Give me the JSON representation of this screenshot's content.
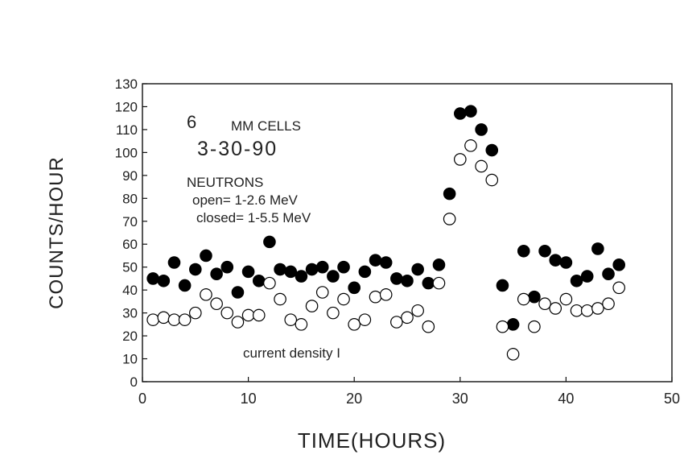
{
  "chart_data": {
    "type": "scatter",
    "title": "",
    "xlabel": "TIME(HOURS)",
    "ylabel": "COUNTS/HOUR",
    "xlim": [
      0,
      50
    ],
    "ylim": [
      0,
      130
    ],
    "x_ticks": [
      0,
      10,
      20,
      30,
      40,
      50
    ],
    "y_ticks": [
      0,
      10,
      20,
      30,
      40,
      50,
      60,
      70,
      80,
      90,
      100,
      110,
      120,
      130
    ],
    "grid": false,
    "annotations": {
      "cell_number": "6",
      "cell_type": "MM CELLS",
      "date": "3-30-90",
      "neutrons": "NEUTRONS",
      "open": "open= 1-2.6 MeV",
      "closed": "closed= 1-5.5 MeV",
      "current_density": "current density I"
    },
    "series": [
      {
        "marker": "filled-circle",
        "color": "#000000",
        "x": [
          1,
          2,
          3,
          4,
          5,
          6,
          7,
          8,
          9,
          10,
          11,
          12,
          13,
          14,
          15,
          16,
          17,
          18,
          19,
          20,
          21,
          22,
          23,
          24,
          25,
          26,
          27,
          28,
          29,
          30,
          31,
          32,
          33,
          34,
          35,
          36,
          37,
          38,
          39,
          40,
          41,
          42,
          43,
          44,
          45
        ],
        "y": [
          45,
          44,
          52,
          42,
          49,
          55,
          47,
          50,
          39,
          48,
          44,
          61,
          49,
          48,
          46,
          49,
          50,
          46,
          50,
          41,
          48,
          53,
          52,
          45,
          44,
          49,
          43,
          51,
          82,
          117,
          118,
          110,
          101,
          42,
          25,
          57,
          37,
          57,
          53,
          52,
          44,
          46,
          58,
          47,
          51
        ]
      },
      {
        "marker": "open-circle",
        "color": "#000000",
        "x": [
          1,
          2,
          3,
          4,
          5,
          6,
          7,
          8,
          9,
          10,
          11,
          12,
          13,
          14,
          15,
          16,
          17,
          18,
          19,
          20,
          21,
          22,
          23,
          24,
          25,
          26,
          27,
          28,
          29,
          30,
          31,
          32,
          33,
          34,
          35,
          36,
          37,
          38,
          39,
          40,
          41,
          42,
          43,
          44,
          45
        ],
        "y": [
          27,
          28,
          27,
          27,
          30,
          38,
          34,
          30,
          26,
          29,
          29,
          43,
          36,
          27,
          25,
          33,
          39,
          30,
          36,
          25,
          27,
          37,
          38,
          26,
          28,
          31,
          24,
          43,
          71,
          97,
          103,
          94,
          88,
          24,
          12,
          36,
          24,
          34,
          32,
          36,
          31,
          31,
          32,
          34,
          41
        ]
      }
    ]
  }
}
